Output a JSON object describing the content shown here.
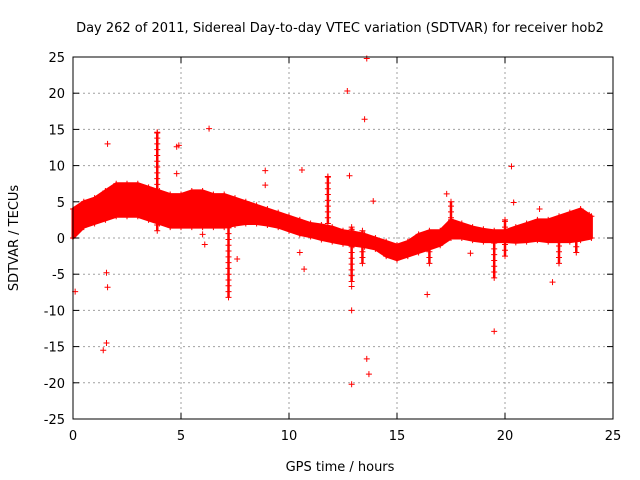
{
  "chart_data": {
    "type": "scatter",
    "title": "Day 262 of 2011, Sidereal Day-to-day VTEC variation (SDTVAR) for receiver hob2",
    "xlabel": "GPS time / hours",
    "ylabel": "SDTVAR / TECUs",
    "xlim": [
      0,
      25
    ],
    "ylim": [
      -25,
      25
    ],
    "xticks": [
      0,
      5,
      10,
      15,
      20,
      25
    ],
    "yticks": [
      -25,
      -20,
      -15,
      -10,
      -5,
      0,
      5,
      10,
      15,
      20,
      25
    ],
    "grid": true,
    "marker": "+",
    "color": "#ff0000",
    "series": [
      {
        "name": "SDTVAR",
        "band_x": [
          0.0,
          0.5,
          1.0,
          1.5,
          2.0,
          2.5,
          3.0,
          3.5,
          4.0,
          4.5,
          5.0,
          5.5,
          6.0,
          6.5,
          7.0,
          7.5,
          8.0,
          8.5,
          9.0,
          9.5,
          10.0,
          10.5,
          11.0,
          11.5,
          12.0,
          12.5,
          13.0,
          13.5,
          14.0,
          14.5,
          15.0,
          15.5,
          16.0,
          16.5,
          17.0,
          17.5,
          18.0,
          18.5,
          19.0,
          19.5,
          20.0,
          20.5,
          21.0,
          21.5,
          22.0,
          22.5,
          23.0,
          23.5,
          24.0
        ],
        "band_low": [
          0.0,
          1.5,
          2.0,
          2.5,
          3.0,
          3.0,
          3.0,
          2.5,
          2.0,
          1.5,
          1.5,
          1.5,
          1.5,
          1.5,
          1.5,
          1.8,
          2.0,
          2.0,
          1.8,
          1.5,
          1.0,
          0.5,
          0.2,
          -0.2,
          -0.5,
          -0.8,
          -1.0,
          -1.2,
          -1.5,
          -2.5,
          -3.0,
          -2.5,
          -2.0,
          -1.5,
          -1.0,
          0.0,
          0.0,
          -0.3,
          -0.5,
          -0.5,
          -0.5,
          -0.6,
          -0.5,
          -0.3,
          -0.5,
          -0.5,
          -0.5,
          -0.3,
          0.0
        ],
        "band_high": [
          4.0,
          5.0,
          5.5,
          6.5,
          7.5,
          7.5,
          7.5,
          7.0,
          6.5,
          6.0,
          6.0,
          6.5,
          6.5,
          6.0,
          6.0,
          5.5,
          5.0,
          4.5,
          4.0,
          3.5,
          3.0,
          2.5,
          2.0,
          1.8,
          1.5,
          1.0,
          0.8,
          0.5,
          0.0,
          -0.5,
          -1.0,
          -0.5,
          0.5,
          1.0,
          1.0,
          2.5,
          2.0,
          1.5,
          1.2,
          1.0,
          1.0,
          1.5,
          2.0,
          2.5,
          2.5,
          3.0,
          3.5,
          4.0,
          3.0
        ],
        "spikes": [
          {
            "x": 3.9,
            "y_from": 1.0,
            "y_to": 14.5
          },
          {
            "x": 7.2,
            "y_from": -8.2,
            "y_to": 1.5
          },
          {
            "x": 11.8,
            "y_from": 2.0,
            "y_to": 8.5
          },
          {
            "x": 12.9,
            "y_from": -6.0,
            "y_to": 1.5
          },
          {
            "x": 13.4,
            "y_from": -3.5,
            "y_to": 1.0
          },
          {
            "x": 16.5,
            "y_from": -3.5,
            "y_to": 0.0
          },
          {
            "x": 17.5,
            "y_from": 2.0,
            "y_to": 5.0
          },
          {
            "x": 19.5,
            "y_from": -5.5,
            "y_to": 0.0
          },
          {
            "x": 20.0,
            "y_from": -2.5,
            "y_to": 2.5
          },
          {
            "x": 22.5,
            "y_from": -3.5,
            "y_to": 1.0
          },
          {
            "x": 23.3,
            "y_from": -2.0,
            "y_to": 3.5
          }
        ],
        "outliers": [
          {
            "x": 0.1,
            "y": -7.4
          },
          {
            "x": 1.4,
            "y": -15.5
          },
          {
            "x": 1.55,
            "y": -14.5
          },
          {
            "x": 1.6,
            "y": 13.0
          },
          {
            "x": 1.55,
            "y": -4.8
          },
          {
            "x": 1.6,
            "y": -6.8
          },
          {
            "x": 3.9,
            "y": 14.6
          },
          {
            "x": 4.8,
            "y": 12.6
          },
          {
            "x": 4.9,
            "y": 12.8
          },
          {
            "x": 4.8,
            "y": 8.9
          },
          {
            "x": 6.3,
            "y": 15.1
          },
          {
            "x": 6.0,
            "y": 0.5
          },
          {
            "x": 6.1,
            "y": -0.9
          },
          {
            "x": 7.6,
            "y": -2.9
          },
          {
            "x": 8.9,
            "y": 9.3
          },
          {
            "x": 8.9,
            "y": 7.3
          },
          {
            "x": 10.6,
            "y": 9.4
          },
          {
            "x": 10.5,
            "y": -2.0
          },
          {
            "x": 10.7,
            "y": -4.3
          },
          {
            "x": 12.7,
            "y": 20.3
          },
          {
            "x": 12.8,
            "y": 8.6
          },
          {
            "x": 13.6,
            "y": 24.8
          },
          {
            "x": 13.5,
            "y": 16.4
          },
          {
            "x": 13.9,
            "y": 5.1
          },
          {
            "x": 12.9,
            "y": -6.7
          },
          {
            "x": 12.9,
            "y": -10.0
          },
          {
            "x": 13.6,
            "y": -16.7
          },
          {
            "x": 13.7,
            "y": -18.8
          },
          {
            "x": 12.9,
            "y": -20.2
          },
          {
            "x": 16.4,
            "y": -7.8
          },
          {
            "x": 17.3,
            "y": 6.1
          },
          {
            "x": 18.4,
            "y": -2.1
          },
          {
            "x": 19.5,
            "y": -12.9
          },
          {
            "x": 20.3,
            "y": 9.9
          },
          {
            "x": 20.4,
            "y": 4.9
          },
          {
            "x": 21.6,
            "y": 4.0
          },
          {
            "x": 22.2,
            "y": -6.1
          },
          {
            "x": 23.9,
            "y": 3.2
          }
        ]
      }
    ]
  }
}
